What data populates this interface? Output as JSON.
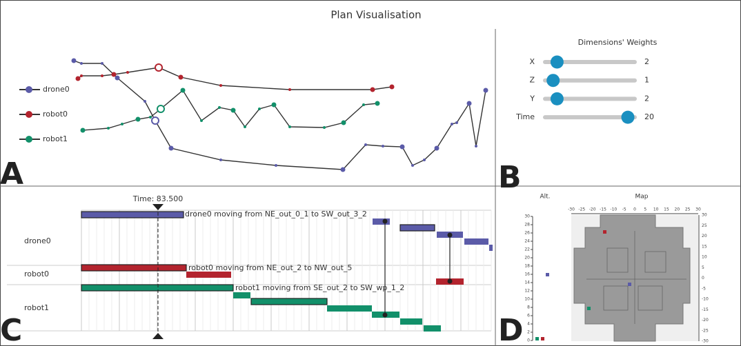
{
  "title": "Plan Visualisation",
  "panel_labels": [
    "A",
    "B",
    "C",
    "D"
  ],
  "trajectories": {
    "legend": [
      {
        "name": "drone0",
        "color": "#5b5ba8"
      },
      {
        "name": "robot0",
        "color": "#b3242e"
      },
      {
        "name": "robot1",
        "color": "#12906a"
      }
    ]
  },
  "weights": {
    "title": "Dimensions' Weights",
    "sliders": [
      {
        "label": "X",
        "value": 2
      },
      {
        "label": "Z",
        "value": 1
      },
      {
        "label": "Y",
        "value": 2
      },
      {
        "label": "Time",
        "value": 20
      }
    ]
  },
  "timeline": {
    "time_label": "Time: 83.500",
    "rows": [
      "drone0",
      "robot0",
      "robot1"
    ],
    "actions": [
      "drone0 moving from NE_out_0_1 to SW_out_3_2",
      "robot0 moving from NE_out_2 to NW_out_5",
      "robot1 moving from SE_out_2 to SW_wp_1_2"
    ]
  },
  "map_view": {
    "alt_title": "Alt.",
    "map_title": "Map",
    "alt_ticks": [
      0,
      2,
      4,
      6,
      8,
      10,
      12,
      14,
      16,
      18,
      20,
      22,
      24,
      26,
      28,
      30
    ],
    "x_ticks": [
      -30,
      -25,
      -20,
      -15,
      -10,
      -5,
      0,
      5,
      10,
      15,
      20,
      25,
      30
    ],
    "y_ticks": [
      30,
      25,
      20,
      15,
      10,
      5,
      0,
      -5,
      -10,
      -15,
      -20,
      -25,
      -30
    ]
  }
}
